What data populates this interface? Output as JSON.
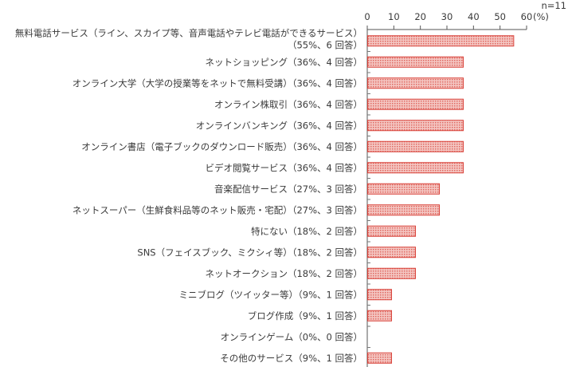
{
  "chart_data": {
    "type": "bar",
    "orientation": "horizontal",
    "sample_note": "n=11",
    "unit_label": "(%)",
    "xlim": [
      0,
      60
    ],
    "ticks": [
      0,
      10,
      20,
      30,
      40,
      50,
      60
    ],
    "grid": false,
    "bar_fill": "#f4c7c3",
    "bar_stroke": "#d9423a",
    "bar_pattern": "#e06a62",
    "categories": [
      {
        "label": [
          "無料電話サービス（ライン、スカイプ等、音声電話やテレビ電話ができるサービス）",
          "（55%、6 回答）"
        ],
        "value": 55
      },
      {
        "label": [
          "ネットショッピング（36%、4 回答）"
        ],
        "value": 36
      },
      {
        "label": [
          "オンライン大学（大学の授業等をネットで無料受講）（36%、4 回答）"
        ],
        "value": 36
      },
      {
        "label": [
          "オンライン株取引（36%、4 回答）"
        ],
        "value": 36
      },
      {
        "label": [
          "オンラインバンキング（36%、4 回答）"
        ],
        "value": 36
      },
      {
        "label": [
          "オンライン書店（電子ブックのダウンロード販売）（36%、4 回答）"
        ],
        "value": 36
      },
      {
        "label": [
          "ビデオ閲覧サービス（36%、4 回答）"
        ],
        "value": 36
      },
      {
        "label": [
          "音楽配信サービス（27%、3 回答）"
        ],
        "value": 27
      },
      {
        "label": [
          "ネットスーパー（生鮮食料品等のネット販売・宅配）（27%、3 回答）"
        ],
        "value": 27
      },
      {
        "label": [
          "特にない（18%、2 回答）"
        ],
        "value": 18
      },
      {
        "label": [
          "SNS（フェイスブック、ミクシィ等）（18%、2 回答）"
        ],
        "value": 18
      },
      {
        "label": [
          "ネットオークション（18%、2 回答）"
        ],
        "value": 18
      },
      {
        "label": [
          "ミニブログ（ツイッター等）（9%、1 回答）"
        ],
        "value": 9
      },
      {
        "label": [
          "ブログ作成（9%、1 回答）"
        ],
        "value": 9
      },
      {
        "label": [
          "オンラインゲーム（0%、0 回答）"
        ],
        "value": 0
      },
      {
        "label": [
          "その他のサービス（9%、1 回答）"
        ],
        "value": 9
      }
    ]
  }
}
